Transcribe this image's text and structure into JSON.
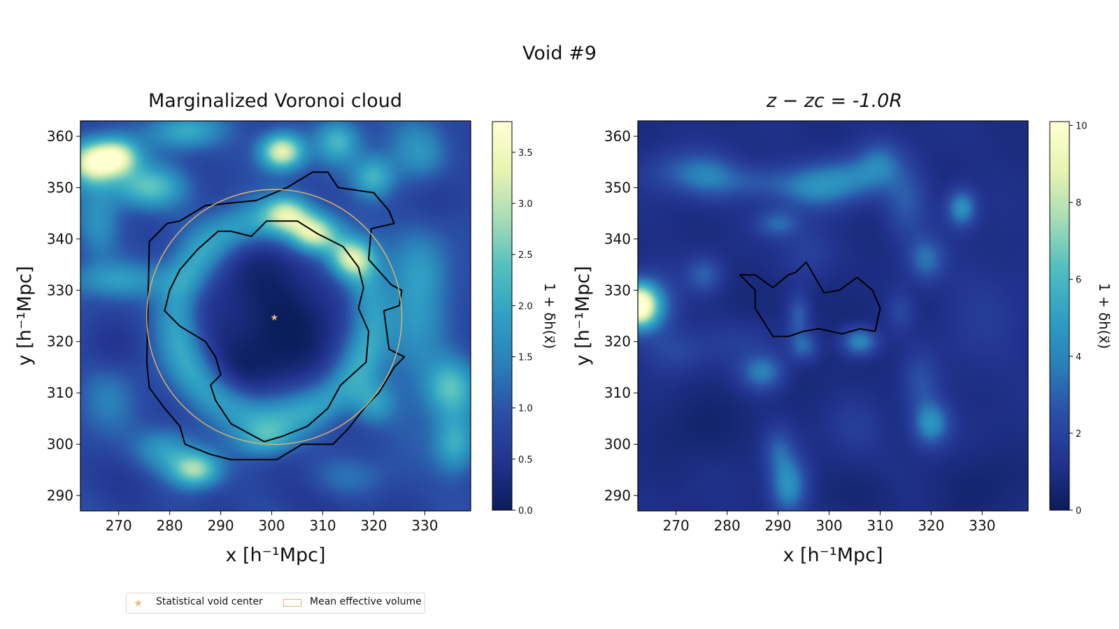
{
  "figure": {
    "suptitle": "Void #9"
  },
  "legend": {
    "center_label": "Statistical void center",
    "volume_label": "Mean effective volume"
  },
  "colors": {
    "void_center": "#e2c07a",
    "effective_volume": "#e2b56a",
    "boundary": "#000000"
  },
  "colormap": {
    "name": "YlGnBu_r",
    "stops": [
      "#0b1d5a",
      "#22338f",
      "#2b4fa6",
      "#2a7fb8",
      "#2fa0c3",
      "#52bfc0",
      "#a8dcb6",
      "#e8f4b2",
      "#ffffd4"
    ]
  },
  "chart_data": [
    {
      "type": "heatmap",
      "title": "Marginalized Voronoi cloud",
      "xlabel": "x [h⁻¹Mpc]",
      "ylabel": "y [h⁻¹Mpc]",
      "xlim": [
        262.5,
        339
      ],
      "ylim": [
        287,
        363
      ],
      "xticks": [
        270,
        280,
        290,
        300,
        310,
        320,
        330
      ],
      "yticks": [
        290,
        300,
        310,
        320,
        330,
        340,
        350,
        360
      ],
      "colorbar": {
        "label": "1 + δh(x⃗)",
        "range": [
          0,
          3.8
        ],
        "ticks": [
          0.0,
          0.5,
          1.0,
          1.5,
          2.0,
          2.5,
          3.0,
          3.5
        ],
        "tick_labels": [
          "0.0",
          "0.5",
          "1.0",
          "1.5",
          "2.0",
          "2.5",
          "3.0",
          "3.5"
        ]
      },
      "background_level": 0.85,
      "features": [
        {
          "type": "blob",
          "x": 300.5,
          "y": 325,
          "sx": 11,
          "sy": 12,
          "amp": -0.8
        },
        {
          "type": "blob",
          "x": 296,
          "y": 315,
          "sx": 6,
          "sy": 5,
          "amp": -0.2
        },
        {
          "type": "ring",
          "x": 300.5,
          "y": 324.5,
          "r": 19,
          "w": 3.2,
          "amp": 1.25
        },
        {
          "type": "blob",
          "x": 265,
          "y": 355,
          "sx": 3.5,
          "sy": 3,
          "amp": 2.6
        },
        {
          "type": "blob",
          "x": 270,
          "y": 356,
          "sx": 3,
          "sy": 2.5,
          "amp": 2.0
        },
        {
          "type": "blob",
          "x": 276,
          "y": 350,
          "sx": 5,
          "sy": 3,
          "amp": 1.6
        },
        {
          "type": "blob",
          "x": 283,
          "y": 361,
          "sx": 5,
          "sy": 2.5,
          "amp": 1.2
        },
        {
          "type": "blob",
          "x": 302,
          "y": 357,
          "sx": 3,
          "sy": 2.5,
          "amp": 2.6
        },
        {
          "type": "blob",
          "x": 313,
          "y": 359,
          "sx": 3,
          "sy": 3,
          "amp": 1.3
        },
        {
          "type": "blob",
          "x": 320,
          "y": 352,
          "sx": 3,
          "sy": 3,
          "amp": 1.4
        },
        {
          "type": "blob",
          "x": 329,
          "y": 357,
          "sx": 4,
          "sy": 4,
          "amp": 0.9
        },
        {
          "type": "blob",
          "x": 303,
          "y": 345,
          "sx": 3,
          "sy": 2.5,
          "amp": 1.5
        },
        {
          "type": "blob",
          "x": 308,
          "y": 341,
          "sx": 3,
          "sy": 2.5,
          "amp": 1.6
        },
        {
          "type": "blob",
          "x": 316,
          "y": 336,
          "sx": 3,
          "sy": 2.5,
          "amp": 1.5
        },
        {
          "type": "blob",
          "x": 270,
          "y": 332,
          "sx": 8,
          "sy": 2.5,
          "amp": 0.9
        },
        {
          "type": "blob",
          "x": 328,
          "y": 323,
          "sx": 4,
          "sy": 10,
          "amp": 0.8
        },
        {
          "type": "blob",
          "x": 335,
          "y": 311,
          "sx": 3.5,
          "sy": 4,
          "amp": 1.5
        },
        {
          "type": "blob",
          "x": 336,
          "y": 300,
          "sx": 3,
          "sy": 4,
          "amp": 1.3
        },
        {
          "type": "blob",
          "x": 285,
          "y": 295,
          "sx": 3.5,
          "sy": 2.5,
          "amp": 2.0
        },
        {
          "type": "blob",
          "x": 279,
          "y": 299,
          "sx": 4,
          "sy": 3,
          "amp": 1.0
        },
        {
          "type": "blob",
          "x": 299,
          "y": 301,
          "sx": 4,
          "sy": 2.5,
          "amp": 1.2
        },
        {
          "type": "blob",
          "x": 320,
          "y": 308,
          "sx": 3,
          "sy": 3,
          "amp": 1.0
        },
        {
          "type": "blob",
          "x": 330,
          "y": 335,
          "sx": 4,
          "sy": 5,
          "amp": 0.7
        },
        {
          "type": "blob",
          "x": 266,
          "y": 343,
          "sx": 3,
          "sy": 5,
          "amp": 0.8
        },
        {
          "type": "blob",
          "x": 315,
          "y": 293,
          "sx": 6,
          "sy": 3,
          "amp": 0.6
        },
        {
          "type": "blob",
          "x": 268,
          "y": 309,
          "sx": 4,
          "sy": 6,
          "amp": 0.5
        },
        {
          "type": "blob",
          "x": 311,
          "y": 290,
          "sx": 8,
          "sy": 4,
          "amp": -0.4
        },
        {
          "type": "blob",
          "x": 273,
          "y": 292,
          "sx": 6,
          "sy": 4,
          "amp": -0.3
        },
        {
          "type": "blob",
          "x": 268,
          "y": 318,
          "sx": 4,
          "sy": 4,
          "amp": -0.35
        },
        {
          "type": "blob",
          "x": 333,
          "y": 348,
          "sx": 4,
          "sy": 4,
          "amp": -0.4
        }
      ],
      "boundary_outer": [
        [
          282,
          343.5
        ],
        [
          287,
          346.5
        ],
        [
          297,
          347.5
        ],
        [
          303,
          350
        ],
        [
          308,
          353
        ],
        [
          311,
          353
        ],
        [
          313,
          350
        ],
        [
          320,
          349
        ],
        [
          323,
          345.5
        ],
        [
          324,
          343
        ],
        [
          319.5,
          342
        ],
        [
          319,
          336
        ],
        [
          323.5,
          331
        ],
        [
          325.5,
          330
        ],
        [
          325,
          327
        ],
        [
          322,
          326
        ],
        [
          323,
          318.5
        ],
        [
          326,
          317
        ],
        [
          324,
          315
        ],
        [
          321,
          310
        ],
        [
          318.5,
          307.5
        ],
        [
          315,
          303
        ],
        [
          312,
          300
        ],
        [
          306,
          300
        ],
        [
          301,
          297
        ],
        [
          292,
          297
        ],
        [
          288,
          298
        ],
        [
          283,
          300
        ],
        [
          282,
          303.5
        ],
        [
          279,
          307
        ],
        [
          276,
          311
        ],
        [
          275.5,
          316
        ],
        [
          276,
          339.5
        ],
        [
          279.5,
          343
        ]
      ],
      "boundary_inner": [
        [
          289.5,
          341.5
        ],
        [
          292,
          341.5
        ],
        [
          296,
          340.5
        ],
        [
          299,
          343.5
        ],
        [
          305,
          343.5
        ],
        [
          309,
          341
        ],
        [
          314,
          338.5
        ],
        [
          317,
          334.5
        ],
        [
          318,
          330.5
        ],
        [
          317,
          326.5
        ],
        [
          319,
          322
        ],
        [
          318.5,
          316
        ],
        [
          313.5,
          311.5
        ],
        [
          311,
          307
        ],
        [
          307,
          303.5
        ],
        [
          302,
          301.5
        ],
        [
          298.5,
          300.5
        ],
        [
          292,
          304
        ],
        [
          289,
          308.5
        ],
        [
          288,
          311.5
        ],
        [
          290,
          313.5
        ],
        [
          289,
          317
        ],
        [
          287,
          320
        ],
        [
          282,
          323
        ],
        [
          279,
          326
        ],
        [
          280,
          330
        ],
        [
          282,
          334
        ],
        [
          285.5,
          338
        ]
      ],
      "effective_circle": {
        "x": 300.5,
        "y": 324.8,
        "r": 25
      },
      "void_center": {
        "x": 300.5,
        "y": 324.8
      }
    },
    {
      "type": "heatmap",
      "title": "z − zc = -1.0R",
      "xlabel": "x [h⁻¹Mpc]",
      "ylabel": "y [h⁻¹Mpc]",
      "xlim": [
        262.5,
        339
      ],
      "ylim": [
        287,
        363
      ],
      "xticks": [
        270,
        280,
        290,
        300,
        310,
        320,
        330
      ],
      "yticks": [
        290,
        300,
        310,
        320,
        330,
        340,
        350,
        360
      ],
      "colorbar": {
        "label": "1 + δh(x⃗)",
        "range": [
          0,
          10.1
        ],
        "ticks": [
          0,
          2,
          4,
          6,
          8,
          10
        ],
        "tick_labels": [
          "0",
          "2",
          "4",
          "6",
          "8",
          "10"
        ]
      },
      "background_level": 1.0,
      "features": [
        {
          "type": "blob",
          "x": 300,
          "y": 325,
          "sx": 14,
          "sy": 14,
          "amp": -0.3
        },
        {
          "type": "blob",
          "x": 262.5,
          "y": 327,
          "sx": 2.5,
          "sy": 3,
          "amp": 9.0
        },
        {
          "type": "blob",
          "x": 266,
          "y": 327,
          "sx": 3,
          "sy": 4,
          "amp": 2.5
        },
        {
          "type": "blob",
          "x": 271,
          "y": 353,
          "sx": 5,
          "sy": 3,
          "amp": 1.6
        },
        {
          "type": "blob",
          "x": 277,
          "y": 352,
          "sx": 4,
          "sy": 3,
          "amp": 2.0
        },
        {
          "type": "blob",
          "x": 286,
          "y": 351,
          "sx": 5,
          "sy": 2.5,
          "amp": 1.5
        },
        {
          "type": "blob",
          "x": 297,
          "y": 350,
          "sx": 5,
          "sy": 3,
          "amp": 2.8
        },
        {
          "type": "blob",
          "x": 305,
          "y": 352,
          "sx": 5,
          "sy": 3,
          "amp": 2.4
        },
        {
          "type": "blob",
          "x": 310,
          "y": 355,
          "sx": 3,
          "sy": 3,
          "amp": 2.0
        },
        {
          "type": "blob",
          "x": 315,
          "y": 347,
          "sx": 3,
          "sy": 5,
          "amp": 1.8
        },
        {
          "type": "blob",
          "x": 319,
          "y": 336,
          "sx": 2.5,
          "sy": 3,
          "amp": 2.5
        },
        {
          "type": "blob",
          "x": 326,
          "y": 346,
          "sx": 2,
          "sy": 2.5,
          "amp": 3.5
        },
        {
          "type": "blob",
          "x": 290,
          "y": 343,
          "sx": 3,
          "sy": 2,
          "amp": 2.2
        },
        {
          "type": "blob",
          "x": 296,
          "y": 337,
          "sx": 4,
          "sy": 4,
          "amp": 1.2
        },
        {
          "type": "blob",
          "x": 275.5,
          "y": 333,
          "sx": 2.5,
          "sy": 2.5,
          "amp": 2.0
        },
        {
          "type": "blob",
          "x": 270,
          "y": 318,
          "sx": 4,
          "sy": 3,
          "amp": 1.2
        },
        {
          "type": "blob",
          "x": 287,
          "y": 314,
          "sx": 3,
          "sy": 2.5,
          "amp": 3.0
        },
        {
          "type": "blob",
          "x": 294,
          "y": 325,
          "sx": 1.5,
          "sy": 3,
          "amp": 2.0
        },
        {
          "type": "blob",
          "x": 295,
          "y": 319,
          "sx": 2,
          "sy": 2,
          "amp": 2.2
        },
        {
          "type": "blob",
          "x": 306,
          "y": 320,
          "sx": 2.5,
          "sy": 2,
          "amp": 3.5
        },
        {
          "type": "blob",
          "x": 314,
          "y": 326,
          "sx": 2,
          "sy": 3,
          "amp": 1.3
        },
        {
          "type": "blob",
          "x": 320,
          "y": 304,
          "sx": 2.5,
          "sy": 3,
          "amp": 3.6
        },
        {
          "type": "blob",
          "x": 318,
          "y": 312,
          "sx": 2.5,
          "sy": 4,
          "amp": 1.5
        },
        {
          "type": "blob",
          "x": 292,
          "y": 292,
          "sx": 2.5,
          "sy": 4,
          "amp": 3.6
        },
        {
          "type": "blob",
          "x": 290,
          "y": 299,
          "sx": 2,
          "sy": 3,
          "amp": 1.6
        },
        {
          "type": "blob",
          "x": 283,
          "y": 320,
          "sx": 6,
          "sy": 3,
          "amp": 0.8
        },
        {
          "type": "blob",
          "x": 305,
          "y": 303,
          "sx": 4,
          "sy": 4,
          "amp": 0.8
        },
        {
          "type": "blob",
          "x": 330,
          "y": 325,
          "sx": 6,
          "sy": 8,
          "amp": 0.6
        },
        {
          "type": "blob",
          "x": 274,
          "y": 304,
          "sx": 6,
          "sy": 5,
          "amp": -0.5
        },
        {
          "type": "blob",
          "x": 330,
          "y": 292,
          "sx": 5,
          "sy": 5,
          "amp": -0.5
        },
        {
          "type": "blob",
          "x": 305,
          "y": 290,
          "sx": 6,
          "sy": 3,
          "amp": -0.4
        }
      ],
      "boundary_outer": [
        [
          282.5,
          333
        ],
        [
          285.5,
          333
        ],
        [
          289,
          330.5
        ],
        [
          292,
          333
        ],
        [
          293.5,
          333.5
        ],
        [
          295.5,
          335.5
        ],
        [
          299,
          329.5
        ],
        [
          302,
          330
        ],
        [
          305.5,
          332.5
        ],
        [
          308.5,
          330
        ],
        [
          310,
          326.5
        ],
        [
          309,
          322
        ],
        [
          306,
          322.5
        ],
        [
          302.5,
          321.5
        ],
        [
          298,
          322.5
        ],
        [
          295,
          322
        ],
        [
          292,
          321
        ],
        [
          289,
          321
        ],
        [
          285.5,
          326.5
        ],
        [
          285.5,
          330
        ]
      ],
      "boundary_inner": []
    }
  ]
}
